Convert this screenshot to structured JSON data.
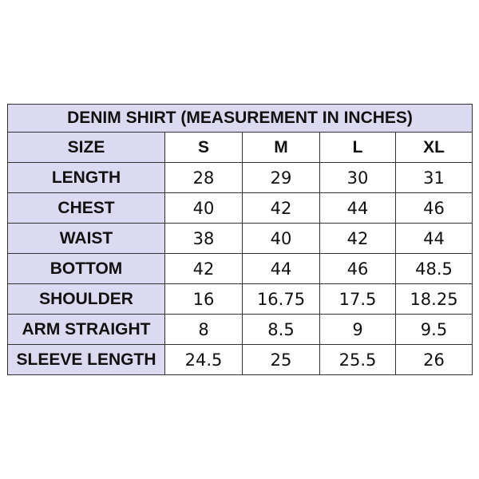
{
  "title": "DENIM SHIRT (MEASUREMENT IN INCHES)",
  "header": {
    "label": "SIZE",
    "sizes": [
      "S",
      "M",
      "L",
      "XL"
    ]
  },
  "rows": [
    {
      "label": "LENGTH",
      "values": [
        "28",
        "29",
        "30",
        "31"
      ]
    },
    {
      "label": "CHEST",
      "values": [
        "40",
        "42",
        "44",
        "46"
      ]
    },
    {
      "label": "WAIST",
      "values": [
        "38",
        "40",
        "42",
        "44"
      ]
    },
    {
      "label": "BOTTOM",
      "values": [
        "42",
        "44",
        "46",
        "48.5"
      ]
    },
    {
      "label": "SHOULDER",
      "values": [
        "16",
        "16.75",
        "17.5",
        "18.25"
      ]
    },
    {
      "label": "ARM STRAIGHT",
      "values": [
        "8",
        "8.5",
        "9",
        "9.5"
      ]
    },
    {
      "label": "SLEEVE LENGTH",
      "values": [
        "24.5",
        "25",
        "25.5",
        "26"
      ]
    }
  ],
  "colors": {
    "label_background": "#dcdaf0",
    "border": "#333333"
  }
}
